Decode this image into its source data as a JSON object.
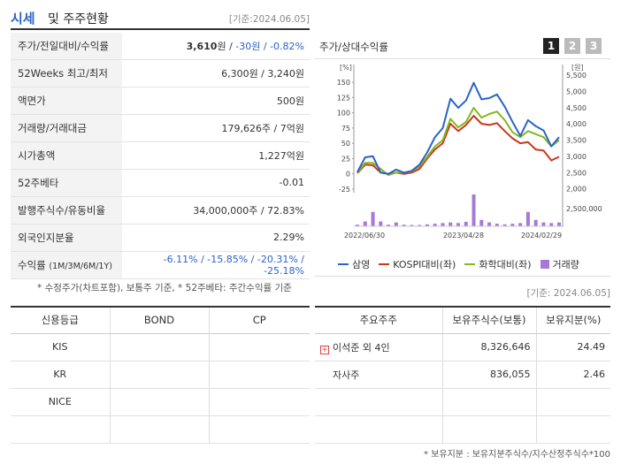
{
  "header": {
    "title1": "시세",
    "title2": "및 주주현황",
    "date": "[기준:2024.06.05]"
  },
  "metrics": [
    {
      "label": "주가/전일대비/수익률",
      "price": "3,610",
      "unit": "원 /",
      "change": "-30원 /",
      "rate": "-0.82%"
    },
    {
      "label": "52Weeks 최고/최저",
      "value": "6,300원 / 3,240원"
    },
    {
      "label": "액면가",
      "value": "500원"
    },
    {
      "label": "거래량/거래대금",
      "value": "179,626주 / 7억원"
    },
    {
      "label": "시가총액",
      "value": "1,227억원"
    },
    {
      "label": "52주베타",
      "value": "-0.01"
    },
    {
      "label": "발행주식수/유동비율",
      "value": "34,000,000주 / 72.83%"
    },
    {
      "label": "외국인지분율",
      "value": "2.29%"
    },
    {
      "label": "수익률",
      "label_sub": "(1M/3M/6M/1Y)",
      "value": "-6.11% / -15.85% / -20.31% / -25.18%"
    }
  ],
  "note1": "* 수정주가(차트포함), 보통주 기준, * 52주베타: 주간수익률 기준",
  "chart": {
    "title": "주가/상대수익률",
    "tabs": [
      "1",
      "2",
      "3"
    ],
    "left_unit": "[%]",
    "right_unit": "[원]",
    "legend": [
      "삼영",
      "KOSPI대비(좌)",
      "화학대비(좌)",
      "거래량"
    ]
  },
  "chart_data": {
    "type": "line",
    "x_ticks": [
      "2022/06/30",
      "2023/04/28",
      "2024/02/29"
    ],
    "y_left_ticks": [
      "150",
      "125",
      "100",
      "75",
      "50",
      "25",
      "0",
      "-25"
    ],
    "y_right_ticks": [
      "5,500",
      "5,000",
      "4,500",
      "4,000",
      "3,500",
      "3,000",
      "2,500",
      "2,000"
    ],
    "volume_tick": "2,500,000",
    "ylim_left": [
      -25,
      160
    ],
    "colors": {
      "samyoung": "#2a63c8",
      "kospi": "#c8371e",
      "chem": "#86b620",
      "volume": "#a679d6"
    },
    "series": [
      {
        "name": "삼영",
        "values": [
          3,
          27,
          29,
          2,
          0,
          7,
          2,
          5,
          15,
          35,
          60,
          75,
          123,
          108,
          120,
          149,
          122,
          124,
          130,
          110,
          85,
          62,
          88,
          78,
          71,
          45,
          60
        ]
      },
      {
        "name": "KOSPI대비(좌)",
        "values": [
          1,
          15,
          14,
          2,
          0,
          2,
          0,
          2,
          8,
          25,
          40,
          50,
          82,
          70,
          80,
          95,
          82,
          80,
          83,
          70,
          58,
          50,
          52,
          40,
          38,
          22,
          28
        ]
      },
      {
        "name": "화학대비(좌)",
        "values": [
          2,
          18,
          18,
          8,
          -2,
          2,
          2,
          4,
          12,
          28,
          45,
          55,
          90,
          76,
          85,
          108,
          92,
          98,
          102,
          88,
          68,
          60,
          70,
          65,
          60,
          45,
          55
        ]
      }
    ],
    "volume": [
      0.05,
      0.15,
      0.45,
      0.15,
      0.05,
      0.12,
      0.05,
      0.04,
      0.04,
      0.06,
      0.08,
      0.1,
      0.12,
      0.1,
      0.14,
      1.0,
      0.2,
      0.12,
      0.08,
      0.06,
      0.08,
      0.1,
      0.45,
      0.2,
      0.12,
      0.1,
      0.12
    ]
  },
  "credit": {
    "headers": [
      "신용등급",
      "BOND",
      "CP"
    ],
    "rows": [
      [
        "KIS",
        "",
        ""
      ],
      [
        "KR",
        "",
        ""
      ],
      [
        "NICE",
        "",
        ""
      ],
      [
        "",
        "",
        ""
      ]
    ]
  },
  "date2": "[기준: 2024.06.05]",
  "shareholders": {
    "headers": [
      "주요주주",
      "보유주식수(보통)",
      "보유지분(%)"
    ],
    "rows": [
      {
        "name": "이석준 외 4인",
        "shares": "8,326,646",
        "pct": "24.49"
      },
      {
        "name": "자사주",
        "shares": "836,055",
        "pct": "2.46"
      },
      {
        "name": "",
        "shares": "",
        "pct": ""
      },
      {
        "name": "",
        "shares": "",
        "pct": ""
      }
    ]
  },
  "note2": "* 보유지분 : 보유지분주식수/지수산정주식수*100"
}
